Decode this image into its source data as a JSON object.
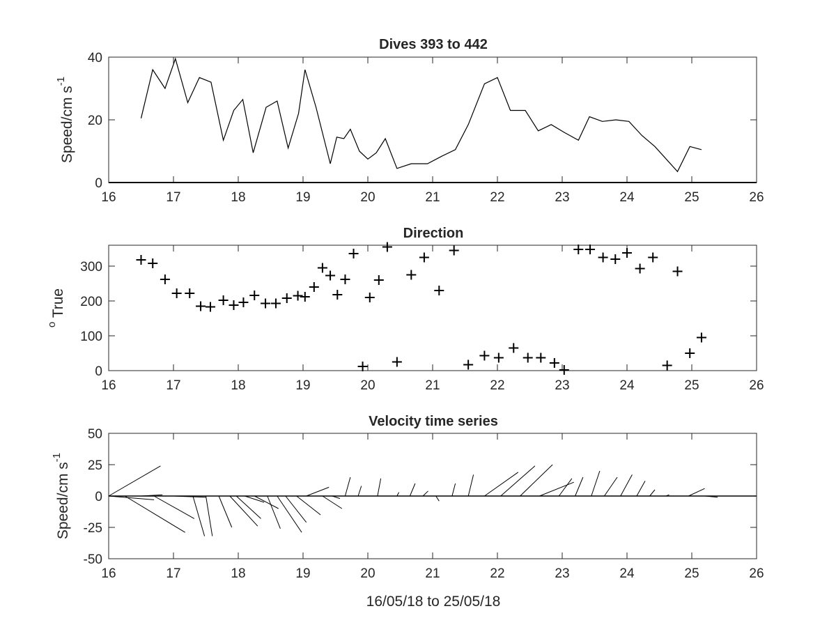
{
  "xlabel": "16/05/18 to 25/05/18",
  "chart_data": [
    {
      "type": "line",
      "title": "Dives 393 to 442",
      "xlabel": "",
      "ylabel_main": "Speed/cm s",
      "ylabel_sup": "-1",
      "xlim": [
        16,
        26
      ],
      "ylim": [
        0,
        40
      ],
      "xticks": [
        16,
        17,
        18,
        19,
        20,
        21,
        22,
        23,
        24,
        25,
        26
      ],
      "yticks": [
        0,
        20,
        40
      ],
      "series": [
        {
          "x": [
            16.5,
            16.68,
            16.87,
            17.03,
            17.22,
            17.4,
            17.58,
            17.77,
            17.93,
            18.07,
            18.23,
            18.43,
            18.6,
            18.77,
            18.93,
            19.03,
            19.2,
            19.42,
            19.52,
            19.63,
            19.73,
            19.87,
            20.0,
            20.13,
            20.27,
            20.45,
            20.67,
            20.92,
            21.15,
            21.35,
            21.55,
            21.8,
            22.0,
            22.2,
            22.43,
            22.63,
            22.83,
            23.03,
            23.25,
            23.42,
            23.62,
            23.83,
            24.03,
            24.23,
            24.43,
            24.78,
            24.97,
            25.15
          ],
          "values": [
            20.5,
            36,
            30,
            39.5,
            25.5,
            33.5,
            32,
            13.5,
            23,
            26.5,
            9.5,
            24,
            26,
            11,
            22,
            36,
            24,
            6,
            14.5,
            14,
            17,
            10,
            7.5,
            9.5,
            14,
            4.5,
            6,
            6,
            8.5,
            10.5,
            18.5,
            31.5,
            33.5,
            23,
            23,
            16.5,
            18.5,
            16,
            13.5,
            21,
            19.5,
            20,
            19.5,
            15,
            11.5,
            3.5,
            11.5,
            10.5
          ]
        }
      ]
    },
    {
      "type": "scatter",
      "title": "Direction",
      "ylabel_sup": "o",
      "ylabel_main": " True",
      "xlim": [
        16,
        26
      ],
      "ylim": [
        0,
        360
      ],
      "xticks": [
        16,
        17,
        18,
        19,
        20,
        21,
        22,
        23,
        24,
        25,
        26
      ],
      "yticks": [
        0,
        100,
        200,
        300
      ],
      "marker": "+",
      "series": [
        {
          "x": [
            16.5,
            16.68,
            16.87,
            17.05,
            17.25,
            17.42,
            17.57,
            17.77,
            17.93,
            18.08,
            18.25,
            18.42,
            18.58,
            18.75,
            18.92,
            19.03,
            19.17,
            19.3,
            19.42,
            19.53,
            19.65,
            19.78,
            19.92,
            20.03,
            20.17,
            20.3,
            20.45,
            20.67,
            20.87,
            21.1,
            21.33,
            21.55,
            21.8,
            22.02,
            22.25,
            22.47,
            22.67,
            22.88,
            23.03,
            23.25,
            23.43,
            23.63,
            23.82,
            24.0,
            24.2,
            24.4,
            24.62,
            24.78,
            24.97,
            25.15
          ],
          "values": [
            318,
            308,
            262,
            222,
            222,
            185,
            183,
            202,
            188,
            196,
            216,
            193,
            193,
            208,
            215,
            212,
            240,
            295,
            273,
            218,
            262,
            336,
            12,
            210,
            260,
            355,
            25,
            275,
            325,
            230,
            345,
            17,
            43,
            37,
            65,
            37,
            37,
            22,
            2,
            348,
            348,
            325,
            320,
            338,
            293,
            325,
            15,
            285,
            50,
            95
          ]
        }
      ]
    },
    {
      "type": "quiver",
      "title": "Velocity time series",
      "ylabel_main": "Speed/cm s",
      "ylabel_sup": "-1",
      "xlim": [
        16,
        26
      ],
      "ylim": [
        -50,
        50
      ],
      "xticks": [
        16,
        17,
        18,
        19,
        20,
        21,
        22,
        23,
        24,
        25,
        26
      ],
      "yticks": [
        -50,
        -25,
        0,
        25,
        50
      ],
      "vectors": {
        "x": [
          16.0,
          16.0,
          16.25,
          16.5,
          16.7,
          17.0,
          17.3,
          17.5,
          17.7,
          17.87,
          17.97,
          18.1,
          18.25,
          18.45,
          18.6,
          18.73,
          18.9,
          19.05,
          19.3,
          19.45,
          19.65,
          19.85,
          20.15,
          20.45,
          20.65,
          20.85,
          21.05,
          21.3,
          21.55,
          21.8,
          22.05,
          22.35,
          22.65,
          22.95,
          23.2,
          23.45,
          23.65,
          23.9,
          24.15,
          24.35,
          24.6,
          24.95,
          25.2
        ],
        "u": [
          0.8,
          0.7,
          0.93,
          0.33,
          0.62,
          0.5,
          0.18,
          0.1,
          0.2,
          0.43,
          0.38,
          0.3,
          0.37,
          0.2,
          0.38,
          0.32,
          0.37,
          0.35,
          0.3,
          0.12,
          0.08,
          0.05,
          0.05,
          0.03,
          0.08,
          0.08,
          0.05,
          0.05,
          0.08,
          0.52,
          0.53,
          0.5,
          0.53,
          0.2,
          0.12,
          0.13,
          0.2,
          0.18,
          0.13,
          0.08,
          0.05,
          0.25,
          0.2
        ],
        "v": [
          24,
          -3,
          -29,
          1,
          -18,
          -1,
          -32,
          -32,
          -25,
          -24,
          -18,
          -5,
          -10,
          -26,
          -29,
          -21,
          -15,
          7,
          -10,
          -2,
          15,
          8,
          14,
          3,
          10,
          4,
          -4,
          10,
          17,
          19,
          24,
          25,
          11,
          14,
          15,
          20,
          15,
          17,
          12,
          5,
          1,
          6,
          -1
        ]
      }
    }
  ]
}
